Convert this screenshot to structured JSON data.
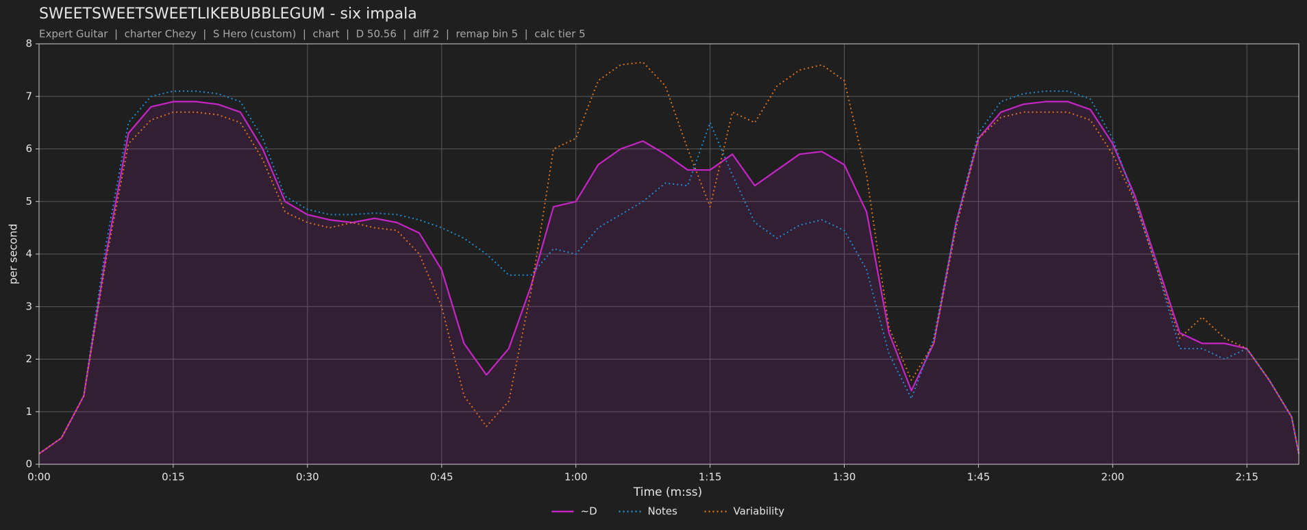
{
  "chart_data": {
    "type": "line",
    "title": "SWEETSWEETSWEETLIKEBUBBLEGUM - six impala",
    "subtitle": "Expert Guitar  |  charter Chezy  |  S Hero (custom)  |  chart  |  D 50.56  |  diff 2  |  remap bin 5  |  calc tier 5",
    "xlabel": "Time (m:ss)",
    "ylabel": "per second",
    "x": [
      0,
      2.5,
      5,
      7.5,
      10,
      12.5,
      15,
      17.5,
      20,
      22.5,
      25,
      27.5,
      30,
      32.5,
      35,
      37.5,
      40,
      42.5,
      45,
      47.5,
      50,
      52.5,
      55,
      57.5,
      60,
      62.5,
      65,
      67.5,
      70,
      72.5,
      75,
      77.5,
      80,
      82.5,
      85,
      87.5,
      90,
      92.5,
      95,
      97.5,
      100,
      102.5,
      105,
      107.5,
      110,
      112.5,
      115,
      117.5,
      120,
      122.5,
      125,
      127.5,
      130,
      132.5,
      135,
      137.5,
      140,
      140.8
    ],
    "series": [
      {
        "name": "~D",
        "color": "#c725c7",
        "style": "solid",
        "area": true,
        "values": [
          0.2,
          0.5,
          1.3,
          4.0,
          6.3,
          6.8,
          6.9,
          6.9,
          6.85,
          6.7,
          6.0,
          5.0,
          4.75,
          4.65,
          4.6,
          4.68,
          4.6,
          4.4,
          3.7,
          2.3,
          1.7,
          2.2,
          3.4,
          4.9,
          5.0,
          5.7,
          6.0,
          6.15,
          5.9,
          5.6,
          5.6,
          5.9,
          5.3,
          5.6,
          5.9,
          5.95,
          5.7,
          4.8,
          2.5,
          1.4,
          2.3,
          4.6,
          6.2,
          6.7,
          6.85,
          6.9,
          6.9,
          6.75,
          6.1,
          5.1,
          3.8,
          2.5,
          2.3,
          2.3,
          2.2,
          1.6,
          0.9,
          0.2
        ]
      },
      {
        "name": "Notes",
        "color": "#1f8fd6",
        "style": "dotted",
        "values": [
          0.2,
          0.5,
          1.3,
          4.2,
          6.5,
          7.0,
          7.1,
          7.1,
          7.05,
          6.9,
          6.2,
          5.1,
          4.85,
          4.75,
          4.75,
          4.78,
          4.75,
          4.65,
          4.5,
          4.3,
          4.0,
          3.6,
          3.6,
          4.1,
          4.0,
          4.5,
          4.75,
          5.0,
          5.35,
          5.3,
          6.5,
          5.5,
          4.6,
          4.3,
          4.55,
          4.65,
          4.45,
          3.7,
          2.1,
          1.25,
          2.4,
          4.6,
          6.3,
          6.9,
          7.05,
          7.1,
          7.1,
          6.95,
          6.2,
          5.0,
          3.7,
          2.2,
          2.2,
          2.0,
          2.2,
          1.6,
          0.9,
          0.2
        ]
      },
      {
        "name": "Variability",
        "color": "#e0741c",
        "style": "dotted",
        "values": [
          0.2,
          0.5,
          1.3,
          3.9,
          6.1,
          6.55,
          6.7,
          6.7,
          6.65,
          6.5,
          5.8,
          4.8,
          4.6,
          4.5,
          4.6,
          4.5,
          4.45,
          4.0,
          3.0,
          1.3,
          0.72,
          1.2,
          3.3,
          6.0,
          6.2,
          7.3,
          7.6,
          7.65,
          7.2,
          6.0,
          4.9,
          6.7,
          6.5,
          7.2,
          7.5,
          7.6,
          7.3,
          5.5,
          2.6,
          1.6,
          2.3,
          4.5,
          6.2,
          6.6,
          6.7,
          6.7,
          6.7,
          6.55,
          5.9,
          5.0,
          3.7,
          2.4,
          2.8,
          2.4,
          2.2,
          1.6,
          0.9,
          0.2
        ]
      }
    ],
    "xlim": [
      0,
      140.8
    ],
    "ylim": [
      0,
      8
    ],
    "xticks": [
      {
        "value": 0,
        "label": "0:00"
      },
      {
        "value": 15,
        "label": "0:15"
      },
      {
        "value": 30,
        "label": "0:30"
      },
      {
        "value": 45,
        "label": "0:45"
      },
      {
        "value": 60,
        "label": "1:00"
      },
      {
        "value": 75,
        "label": "1:15"
      },
      {
        "value": 90,
        "label": "1:30"
      },
      {
        "value": 105,
        "label": "1:45"
      },
      {
        "value": 120,
        "label": "2:00"
      },
      {
        "value": 135,
        "label": "2:15"
      }
    ],
    "yticks": [
      0,
      1,
      2,
      3,
      4,
      5,
      6,
      7,
      8
    ],
    "grid": true,
    "legend": "bottom"
  }
}
